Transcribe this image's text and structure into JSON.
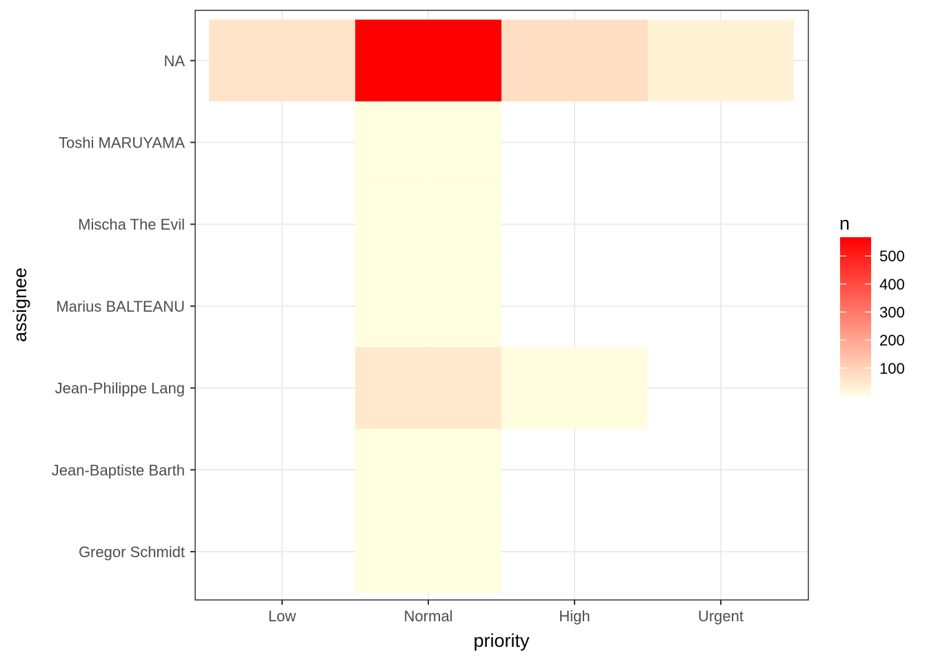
{
  "chart_data": {
    "type": "heatmap",
    "xlabel": "priority",
    "ylabel": "assignee",
    "x_categories": [
      "Low",
      "Normal",
      "High",
      "Urgent"
    ],
    "y_categories": [
      "Gregor Schmidt",
      "Jean-Baptiste Barth",
      "Jean-Philippe Lang",
      "Marius BALTEANU",
      "Mischa The Evil",
      "Toshi MARUYAMA",
      "NA"
    ],
    "cells": [
      {
        "x": "Low",
        "y": "NA",
        "value": 60
      },
      {
        "x": "Normal",
        "y": "NA",
        "value": 567
      },
      {
        "x": "High",
        "y": "NA",
        "value": 75
      },
      {
        "x": "Urgent",
        "y": "NA",
        "value": 30
      },
      {
        "x": "Normal",
        "y": "Toshi MARUYAMA",
        "value": 2
      },
      {
        "x": "Normal",
        "y": "Mischa The Evil",
        "value": 2
      },
      {
        "x": "Normal",
        "y": "Marius BALTEANU",
        "value": 2
      },
      {
        "x": "Normal",
        "y": "Jean-Philippe Lang",
        "value": 50
      },
      {
        "x": "High",
        "y": "Jean-Philippe Lang",
        "value": 5
      },
      {
        "x": "Normal",
        "y": "Jean-Baptiste Barth",
        "value": 2
      },
      {
        "x": "Normal",
        "y": "Gregor Schmidt",
        "value": 2
      }
    ],
    "legend": {
      "title": "n",
      "ticks": [
        100,
        200,
        300,
        400,
        500
      ],
      "range": [
        1,
        567
      ],
      "low_color": "#ffffe0",
      "high_color": "#ff0000",
      "placement": "right"
    },
    "grid": true
  }
}
